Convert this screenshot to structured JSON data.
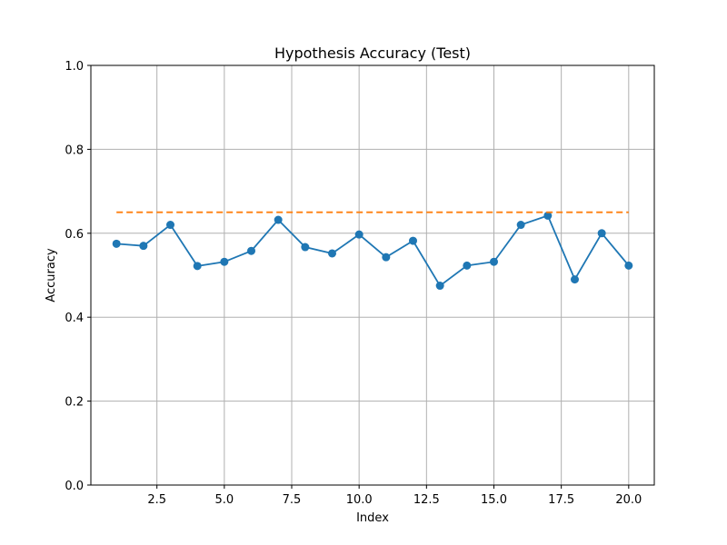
{
  "chart_data": {
    "type": "line",
    "title": "Hypothesis Accuracy (Test)",
    "xlabel": "Index",
    "ylabel": "Accuracy",
    "xlim": [
      0.05,
      20.95
    ],
    "ylim": [
      0.0,
      1.0
    ],
    "xticks": [
      2.5,
      5.0,
      7.5,
      10.0,
      12.5,
      15.0,
      17.5,
      20.0
    ],
    "xtick_labels": [
      "2.5",
      "5.0",
      "7.5",
      "10.0",
      "12.5",
      "15.0",
      "17.5",
      "20.0"
    ],
    "yticks": [
      0.0,
      0.2,
      0.4,
      0.6,
      0.8,
      1.0
    ],
    "ytick_labels": [
      "0.0",
      "0.2",
      "0.4",
      "0.6",
      "0.8",
      "1.0"
    ],
    "grid": true,
    "legend": "none",
    "series": [
      {
        "style": "solid line with circle markers",
        "color": "#1f77b4",
        "x": [
          1,
          2,
          3,
          4,
          5,
          6,
          7,
          8,
          9,
          10,
          11,
          12,
          13,
          14,
          15,
          16,
          17,
          18,
          19,
          20
        ],
        "values": [
          0.575,
          0.57,
          0.62,
          0.522,
          0.532,
          0.558,
          0.632,
          0.567,
          0.552,
          0.597,
          0.543,
          0.582,
          0.475,
          0.523,
          0.532,
          0.62,
          0.642,
          0.49,
          0.6,
          0.523
        ]
      },
      {
        "style": "dashed line",
        "color": "#ff7f0e",
        "x": [
          1,
          20
        ],
        "values": [
          0.65,
          0.65
        ]
      }
    ]
  }
}
